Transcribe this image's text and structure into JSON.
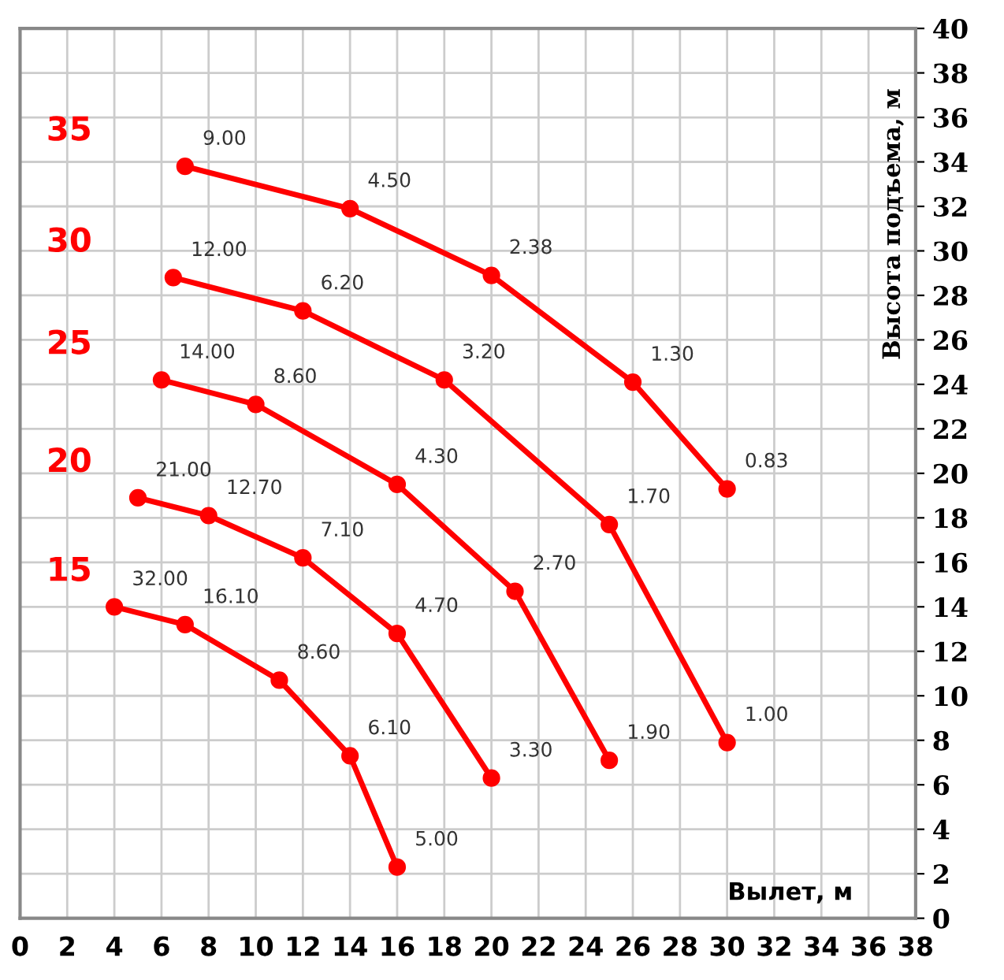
{
  "chart_data": {
    "type": "line",
    "xlabel": "Вылет, м",
    "ylabel": "Высота подъема, м",
    "xlim": [
      0,
      38
    ],
    "xticks": [
      0,
      2,
      4,
      6,
      8,
      10,
      12,
      14,
      16,
      18,
      20,
      22,
      24,
      26,
      28,
      30,
      32,
      34,
      36,
      38
    ],
    "ylim": [
      0,
      40
    ],
    "yticks": [
      0,
      2,
      4,
      6,
      8,
      10,
      12,
      14,
      16,
      18,
      20,
      22,
      24,
      26,
      28,
      30,
      32,
      34,
      36,
      38,
      40
    ],
    "grid": true,
    "marker": "circle",
    "line_style": "solid",
    "series": [
      {
        "name": "35",
        "color": "#ff0000",
        "x": [
          7,
          14,
          20,
          26,
          30
        ],
        "values": [
          33.8,
          31.9,
          28.9,
          24.1,
          19.3
        ]
      },
      {
        "name": "30",
        "color": "#ff0000",
        "x": [
          6.5,
          12,
          18,
          25,
          30
        ],
        "values": [
          28.8,
          27.3,
          24.2,
          17.7,
          7.9
        ]
      },
      {
        "name": "25",
        "color": "#ff0000",
        "x": [
          6,
          10,
          16,
          21,
          25
        ],
        "values": [
          24.2,
          23.1,
          19.5,
          14.7,
          7.1
        ]
      },
      {
        "name": "20",
        "color": "#ff0000",
        "x": [
          5,
          8,
          12,
          16,
          20
        ],
        "values": [
          18.9,
          18.1,
          16.2,
          12.8,
          6.3
        ]
      },
      {
        "name": "15",
        "color": "#ff0000",
        "x": [
          4,
          7,
          11,
          14,
          16
        ],
        "values": [
          14,
          13.2,
          10.7,
          7.3,
          2.3
        ]
      }
    ],
    "annotations": [
      {
        "text": "9.00",
        "x": 7,
        "y": 33.8
      },
      {
        "text": "4.50",
        "x": 14,
        "y": 31.9
      },
      {
        "text": "2.38",
        "x": 20,
        "y": 28.9
      },
      {
        "text": "1.30",
        "x": 26,
        "y": 24.1
      },
      {
        "text": "0.83",
        "x": 30,
        "y": 19.3
      },
      {
        "text": "12.00",
        "x": 6.5,
        "y": 28.8
      },
      {
        "text": "6.20",
        "x": 12,
        "y": 27.3
      },
      {
        "text": "3.20",
        "x": 18,
        "y": 24.2
      },
      {
        "text": "1.70",
        "x": 25,
        "y": 17.7
      },
      {
        "text": "1.00",
        "x": 30,
        "y": 7.9
      },
      {
        "text": "14.00",
        "x": 6,
        "y": 24.2
      },
      {
        "text": "8.60",
        "x": 10,
        "y": 23.1
      },
      {
        "text": "4.30",
        "x": 16,
        "y": 19.5
      },
      {
        "text": "2.70",
        "x": 21,
        "y": 14.7
      },
      {
        "text": "1.90",
        "x": 25,
        "y": 7.1
      },
      {
        "text": "21.00",
        "x": 5,
        "y": 18.9
      },
      {
        "text": "12.70",
        "x": 8,
        "y": 18.1
      },
      {
        "text": "7.10",
        "x": 12,
        "y": 16.2
      },
      {
        "text": "4.70",
        "x": 16,
        "y": 12.8
      },
      {
        "text": "3.30",
        "x": 20,
        "y": 6.3
      },
      {
        "text": "32.00",
        "x": 4,
        "y": 14
      },
      {
        "text": "16.10",
        "x": 7,
        "y": 13.2
      },
      {
        "text": "8.60",
        "x": 11,
        "y": 10.7
      },
      {
        "text": "6.10",
        "x": 14,
        "y": 7.3
      },
      {
        "text": "5.00",
        "x": 16,
        "y": 2.3
      }
    ]
  }
}
